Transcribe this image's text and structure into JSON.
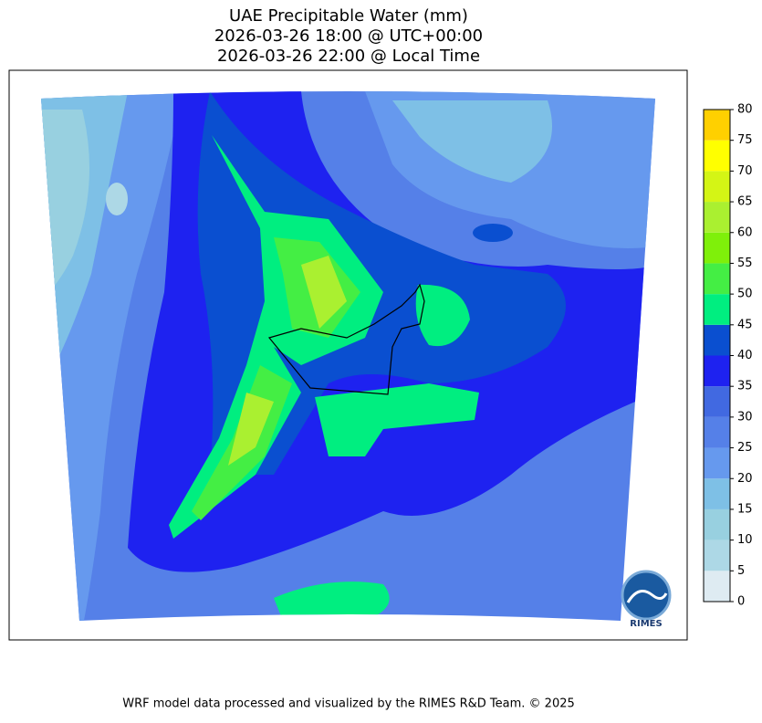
{
  "header": {
    "title_lines": [
      "UAE Precipitable Water (mm)",
      "2026-03-26 18:00 @ UTC+00:00",
      "2026-03-26 22:00 @ Local Time"
    ]
  },
  "colorbar": {
    "ticks": [
      0,
      5,
      10,
      15,
      20,
      25,
      30,
      35,
      40,
      45,
      50,
      55,
      60,
      65,
      70,
      75,
      80
    ],
    "colors": [
      "#deebf2",
      "#add8e6",
      "#98d0e0",
      "#7ec0e6",
      "#6699ee",
      "#5580e8",
      "#4169e1",
      "#1e22f0",
      "#0a4fd0",
      "#00ee80",
      "#44ee44",
      "#7ff00a",
      "#aaf030",
      "#d4f515",
      "#ffff00",
      "#ffd000"
    ]
  },
  "logo": {
    "text": "RIMES"
  },
  "footer": {
    "text": "WRF model data processed and visualized by the RIMES R&D Team. © 2025"
  }
}
